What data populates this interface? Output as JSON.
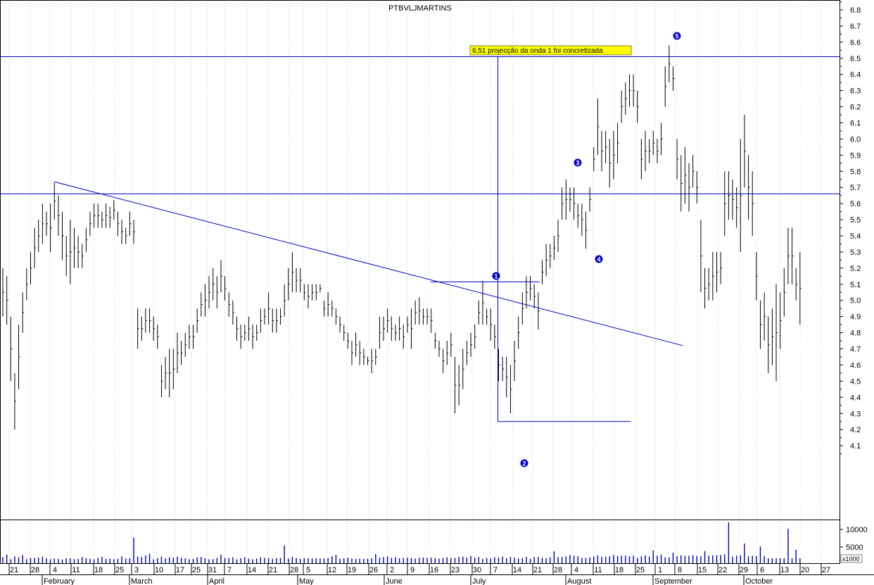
{
  "chart_data": {
    "type": "bar",
    "subtype": "ohlc",
    "title": "PTBVLJMARTINS",
    "price_axis": {
      "ticks": [
        "6.8",
        "6.7",
        "6.6",
        "6.5",
        "6.4",
        "6.3",
        "6.2",
        "6.1",
        "6.0",
        "5.9",
        "5.8",
        "5.7",
        "5.6",
        "5.5",
        "5.4",
        "5.3",
        "5.2",
        "5.1",
        "5.0",
        "4.9",
        "4.8",
        "4.7",
        "4.6",
        "4.5",
        "4.4",
        "4.3",
        "4.2",
        "4.1"
      ],
      "range": [
        4.0,
        6.85
      ]
    },
    "volume_axis": {
      "ticks": [
        "10000",
        "5000"
      ],
      "multiplier_label": "x1000",
      "range": [
        0,
        12500
      ]
    },
    "day_labels": [
      "21",
      "28",
      "4",
      "11",
      "18",
      "25",
      "3",
      "10",
      "17",
      "25",
      "31",
      "7",
      "14",
      "21",
      "28",
      "5",
      "12",
      "19",
      "26",
      "2",
      "9",
      "16",
      "23",
      "30",
      "7",
      "14",
      "21",
      "28",
      "4",
      "11",
      "18",
      "25",
      "1",
      "8",
      "15",
      "22",
      "29",
      "6",
      "13",
      "20",
      "27"
    ],
    "month_labels": [
      "February",
      "March",
      "April",
      "May",
      "June",
      "July",
      "August",
      "September",
      "October"
    ],
    "bars": [
      [
        0,
        5.2,
        4.9
      ],
      [
        1,
        5.15,
        4.85
      ],
      [
        2,
        4.9,
        4.5
      ],
      [
        3,
        4.55,
        4.2
      ],
      [
        4,
        4.85,
        4.45
      ],
      [
        5,
        5.05,
        4.8
      ],
      [
        6,
        5.2,
        5.0
      ],
      [
        7,
        5.3,
        5.1
      ],
      [
        8,
        5.45,
        5.2
      ],
      [
        9,
        5.5,
        5.3
      ],
      [
        10,
        5.6,
        5.35
      ],
      [
        11,
        5.55,
        5.4
      ],
      [
        12,
        5.6,
        5.3
      ],
      [
        13,
        5.73,
        5.5
      ],
      [
        14,
        5.65,
        5.4
      ],
      [
        15,
        5.55,
        5.25
      ],
      [
        16,
        5.4,
        5.15
      ],
      [
        17,
        5.5,
        5.1
      ],
      [
        18,
        5.45,
        5.2
      ],
      [
        19,
        5.4,
        5.2
      ],
      [
        20,
        5.35,
        5.2
      ],
      [
        21,
        5.45,
        5.3
      ],
      [
        22,
        5.55,
        5.4
      ],
      [
        23,
        5.6,
        5.45
      ],
      [
        24,
        5.6,
        5.45
      ],
      [
        25,
        5.55,
        5.45
      ],
      [
        26,
        5.6,
        5.45
      ],
      [
        27,
        5.58,
        5.45
      ],
      [
        28,
        5.62,
        5.5
      ],
      [
        29,
        5.55,
        5.4
      ],
      [
        30,
        5.5,
        5.35
      ],
      [
        31,
        5.45,
        5.35
      ],
      [
        32,
        5.55,
        5.4
      ],
      [
        33,
        5.5,
        5.35
      ],
      [
        34,
        4.95,
        4.7
      ],
      [
        35,
        4.9,
        4.75
      ],
      [
        36,
        4.95,
        4.8
      ],
      [
        37,
        4.95,
        4.8
      ],
      [
        38,
        4.9,
        4.75
      ],
      [
        39,
        4.85,
        4.7
      ],
      [
        40,
        4.6,
        4.4
      ],
      [
        41,
        4.65,
        4.45
      ],
      [
        42,
        4.7,
        4.4
      ],
      [
        43,
        4.7,
        4.45
      ],
      [
        44,
        4.8,
        4.55
      ],
      [
        45,
        4.75,
        4.6
      ],
      [
        46,
        4.8,
        4.65
      ],
      [
        47,
        4.85,
        4.7
      ],
      [
        48,
        4.85,
        4.7
      ],
      [
        49,
        4.95,
        4.8
      ],
      [
        50,
        5.05,
        4.9
      ],
      [
        51,
        5.1,
        4.9
      ],
      [
        52,
        5.15,
        4.95
      ],
      [
        53,
        5.2,
        5.0
      ],
      [
        54,
        5.15,
        4.95
      ],
      [
        55,
        5.25,
        5.05
      ],
      [
        56,
        5.15,
        5.0
      ],
      [
        57,
        5.05,
        4.9
      ],
      [
        58,
        5.0,
        4.85
      ],
      [
        59,
        4.9,
        4.75
      ],
      [
        60,
        4.85,
        4.7
      ],
      [
        61,
        4.85,
        4.75
      ],
      [
        62,
        4.9,
        4.75
      ],
      [
        63,
        4.85,
        4.7
      ],
      [
        64,
        4.85,
        4.75
      ],
      [
        65,
        4.95,
        4.8
      ],
      [
        66,
        4.95,
        4.85
      ],
      [
        67,
        5.05,
        4.85
      ],
      [
        68,
        4.95,
        4.8
      ],
      [
        69,
        4.95,
        4.8
      ],
      [
        70,
        4.95,
        4.85
      ],
      [
        71,
        5.1,
        4.9
      ],
      [
        72,
        5.2,
        5.0
      ],
      [
        73,
        5.3,
        5.05
      ],
      [
        74,
        5.2,
        5.05
      ],
      [
        75,
        5.2,
        5.05
      ],
      [
        76,
        5.1,
        5.0
      ],
      [
        77,
        5.1,
        4.95
      ],
      [
        78,
        5.1,
        5.0
      ],
      [
        79,
        5.1,
        5.0
      ],
      [
        80,
        5.1,
        5.05
      ],
      [
        81,
        5.0,
        4.9
      ],
      [
        82,
        5.05,
        4.9
      ],
      [
        83,
        5.0,
        4.9
      ],
      [
        84,
        4.95,
        4.85
      ],
      [
        85,
        4.9,
        4.8
      ],
      [
        86,
        4.85,
        4.75
      ],
      [
        87,
        4.8,
        4.7
      ],
      [
        88,
        4.75,
        4.6
      ],
      [
        89,
        4.8,
        4.65
      ],
      [
        90,
        4.75,
        4.6
      ],
      [
        91,
        4.7,
        4.6
      ],
      [
        92,
        4.65,
        4.6
      ],
      [
        93,
        4.7,
        4.55
      ],
      [
        94,
        4.7,
        4.6
      ],
      [
        95,
        4.9,
        4.7
      ],
      [
        96,
        4.9,
        4.75
      ],
      [
        97,
        4.95,
        4.8
      ],
      [
        98,
        4.9,
        4.75
      ],
      [
        99,
        4.85,
        4.75
      ],
      [
        100,
        4.9,
        4.75
      ],
      [
        101,
        4.85,
        4.7
      ],
      [
        102,
        4.9,
        4.8
      ],
      [
        103,
        4.95,
        4.7
      ],
      [
        104,
        5.0,
        4.85
      ],
      [
        105,
        5.02,
        4.85
      ],
      [
        106,
        4.95,
        4.85
      ],
      [
        107,
        4.95,
        4.85
      ],
      [
        108,
        4.95,
        4.8
      ],
      [
        109,
        4.8,
        4.7
      ],
      [
        110,
        4.75,
        4.65
      ],
      [
        111,
        4.7,
        4.55
      ],
      [
        112,
        4.75,
        4.6
      ],
      [
        113,
        4.8,
        4.65
      ],
      [
        114,
        4.65,
        4.3
      ],
      [
        115,
        4.6,
        4.35
      ],
      [
        116,
        4.7,
        4.45
      ],
      [
        117,
        4.75,
        4.6
      ],
      [
        118,
        4.8,
        4.65
      ],
      [
        119,
        4.85,
        4.7
      ],
      [
        120,
        5.0,
        4.85
      ],
      [
        121,
        5.12,
        4.85
      ],
      [
        122,
        4.95,
        4.85
      ],
      [
        123,
        4.95,
        4.75
      ],
      [
        124,
        4.85,
        4.7
      ],
      [
        125,
        4.7,
        4.5
      ],
      [
        126,
        4.65,
        4.5
      ],
      [
        127,
        4.65,
        4.4
      ],
      [
        128,
        4.6,
        4.3
      ],
      [
        129,
        4.75,
        4.5
      ],
      [
        130,
        4.9,
        4.7
      ],
      [
        131,
        5.05,
        4.85
      ],
      [
        132,
        5.15,
        4.95
      ],
      [
        133,
        5.15,
        5.0
      ],
      [
        134,
        5.1,
        4.95
      ],
      [
        135,
        5.05,
        4.82
      ],
      [
        136,
        5.25,
        5.1
      ],
      [
        137,
        5.35,
        5.15
      ],
      [
        138,
        5.35,
        5.2
      ],
      [
        139,
        5.4,
        5.25
      ],
      [
        140,
        5.5,
        5.3
      ],
      [
        141,
        5.7,
        5.5
      ],
      [
        142,
        5.75,
        5.5
      ],
      [
        143,
        5.7,
        5.55
      ],
      [
        144,
        5.7,
        5.5
      ],
      [
        145,
        5.6,
        5.45
      ],
      [
        146,
        5.6,
        5.4
      ],
      [
        147,
        5.55,
        5.32
      ],
      [
        148,
        5.7,
        5.55
      ],
      [
        149,
        5.95,
        5.8
      ],
      [
        150,
        6.25,
        5.9
      ],
      [
        151,
        6.05,
        5.8
      ],
      [
        152,
        6.05,
        5.85
      ],
      [
        153,
        6.0,
        5.7
      ],
      [
        154,
        6.05,
        5.75
      ],
      [
        155,
        6.1,
        5.85
      ],
      [
        156,
        6.3,
        6.1
      ],
      [
        157,
        6.35,
        6.15
      ],
      [
        158,
        6.4,
        6.2
      ],
      [
        159,
        6.4,
        6.2
      ],
      [
        160,
        6.3,
        6.1
      ],
      [
        161,
        6.0,
        5.75
      ],
      [
        162,
        6.05,
        5.8
      ],
      [
        163,
        6.0,
        5.85
      ],
      [
        164,
        6.05,
        5.9
      ],
      [
        165,
        6.0,
        5.85
      ],
      [
        166,
        6.1,
        5.9
      ],
      [
        167,
        6.45,
        6.2
      ],
      [
        168,
        6.58,
        6.35
      ],
      [
        169,
        6.45,
        6.3
      ],
      [
        170,
        6.0,
        5.75
      ],
      [
        171,
        5.9,
        5.55
      ],
      [
        172,
        5.95,
        5.6
      ],
      [
        173,
        5.85,
        5.55
      ],
      [
        174,
        5.9,
        5.7
      ],
      [
        175,
        5.8,
        5.6
      ],
      [
        176,
        5.5,
        5.05
      ],
      [
        177,
        5.2,
        4.95
      ],
      [
        178,
        5.2,
        5.0
      ],
      [
        179,
        5.3,
        5.0
      ],
      [
        180,
        5.3,
        5.05
      ],
      [
        181,
        5.3,
        5.1
      ],
      [
        182,
        5.8,
        5.4
      ],
      [
        183,
        5.8,
        5.5
      ],
      [
        184,
        5.75,
        5.5
      ],
      [
        185,
        5.7,
        5.45
      ],
      [
        186,
        6.0,
        5.3
      ],
      [
        187,
        6.15,
        5.7
      ],
      [
        188,
        5.9,
        5.5
      ],
      [
        189,
        5.8,
        5.4
      ],
      [
        190,
        5.3,
        5.0
      ],
      [
        191,
        5.0,
        4.7
      ],
      [
        192,
        5.05,
        4.75
      ],
      [
        193,
        4.9,
        4.55
      ],
      [
        194,
        4.95,
        4.6
      ],
      [
        195,
        5.1,
        4.5
      ],
      [
        196,
        5.05,
        4.7
      ],
      [
        197,
        5.2,
        4.9
      ],
      [
        198,
        5.45,
        5.1
      ],
      [
        199,
        5.45,
        5.1
      ],
      [
        200,
        5.2,
        5.0
      ],
      [
        201,
        5.3,
        4.85
      ]
    ],
    "volume": [
      1900,
      2600,
      1200,
      2100,
      1800,
      2500,
      1200,
      1600,
      1600,
      1700,
      2000,
      1500,
      1200,
      1400,
      1300,
      1100,
      1500,
      1500,
      1200,
      1300,
      1900,
      1500,
      1400,
      1200,
      1600,
      1900,
      1300,
      1400,
      1200,
      1300,
      2100,
      1400,
      1500,
      1700,
      2000,
      1900,
      2400,
      2900,
      1200,
      1600,
      2000,
      1500,
      1800,
      1700,
      2000,
      1600,
      1500,
      1200,
      1300,
      1800,
      1900,
      1500,
      1200,
      1200,
      1600,
      2600,
      1600,
      1500,
      1800,
      1200,
      1500,
      1800,
      1400,
      1200,
      1400,
      1800,
      1600,
      1500,
      1300,
      1500,
      1600,
      1700,
      1400,
      1900,
      1600,
      1300,
      1500,
      1500,
      1500,
      1500,
      1500,
      1400,
      1600,
      2100,
      2500,
      1300,
      1500,
      1700,
      1400,
      1300,
      1400,
      1300,
      1400,
      1500,
      2800,
      1700,
      1900,
      2100,
      1600,
      1800,
      1500,
      1600,
      1700,
      1600,
      1400,
      1600,
      1700,
      1600,
      1700,
      1600,
      1400,
      1600,
      1800,
      1600,
      1600,
      1900,
      2000,
      1700,
      2200,
      1700,
      1900,
      1300,
      1600,
      1400,
      1800,
      1700,
      2000,
      1500,
      1900,
      1700,
      1400,
      1600,
      1900,
      1300,
      1900,
      1900,
      1600,
      1500,
      1800,
      2000,
      1900,
      1900,
      2100,
      2500,
      2300,
      2100,
      1600,
      1600,
      1800,
      2000,
      2400,
      1900,
      2000,
      2100,
      2500,
      2200,
      2300,
      2300,
      2100,
      2300,
      1600,
      2100,
      2400,
      2000,
      2100,
      2300,
      2600,
      1800,
      1800,
      2100,
      2200,
      2400,
      2300,
      2300,
      2400,
      2200,
      2100,
      2300,
      2300,
      2400,
      2400,
      2500,
      2700,
      2200,
      2000,
      2300,
      2400,
      2400,
      2100,
      2300,
      2200,
      2300,
      2200
    ],
    "volume_spikes": [
      [
        33,
        7800
      ],
      [
        71,
        5400
      ],
      [
        164,
        3900
      ],
      [
        169,
        3200
      ],
      [
        177,
        3700
      ],
      [
        183,
        12500
      ],
      [
        187,
        6000
      ],
      [
        191,
        5100
      ],
      [
        198,
        10500
      ],
      [
        200,
        4100
      ],
      [
        139,
        3600
      ]
    ],
    "horizontal_lines": [
      6.51,
      5.66
    ],
    "trendline": {
      "from": [
        13,
        5.735
      ],
      "to": [
        169,
        4.72
      ]
    },
    "rectangle_lines": {
      "vertical_at_bar": 125,
      "top": 6.51,
      "bottom": 4.25,
      "bottom_line_end_bar": 170,
      "wave1_line": {
        "from_bar": 116,
        "to_bar": 149,
        "price": 5.115
      }
    },
    "wave_markers": [
      {
        "label": "1",
        "bar": 134,
        "price": 5.19
      },
      {
        "label": "2",
        "bar": 142,
        "price": 4.25
      },
      {
        "label": "3",
        "bar": 156,
        "price": 5.82
      },
      {
        "label": "4",
        "bar": 162,
        "price": 5.25
      },
      {
        "label": "5",
        "bar": 182,
        "price": 6.63
      }
    ],
    "annotation": "6,51  projecção da onda 1 foi concretizada",
    "colors": {
      "line": "#0000cc",
      "bar": "#000000",
      "volume": "#0000aa",
      "annotation_bg": "#ffff00"
    }
  }
}
